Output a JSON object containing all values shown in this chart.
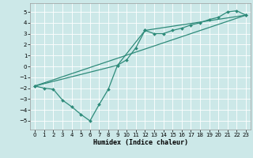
{
  "xlabel": "Humidex (Indice chaleur)",
  "ylabel": "",
  "xlim": [
    -0.5,
    23.5
  ],
  "ylim": [
    -5.8,
    5.8
  ],
  "yticks": [
    -5,
    -4,
    -3,
    -2,
    -1,
    0,
    1,
    2,
    3,
    4,
    5
  ],
  "xticks": [
    0,
    1,
    2,
    3,
    4,
    5,
    6,
    7,
    8,
    9,
    10,
    11,
    12,
    13,
    14,
    15,
    16,
    17,
    18,
    19,
    20,
    21,
    22,
    23
  ],
  "color": "#2e8b7a",
  "bg_color": "#cce8e8",
  "line1_x": [
    0,
    1,
    2,
    3,
    4,
    5,
    6,
    7,
    8,
    9,
    10,
    11,
    12,
    13,
    14,
    15,
    16,
    17,
    18,
    19,
    20,
    21,
    22,
    23
  ],
  "line1_y": [
    -1.8,
    -2.0,
    -2.1,
    -3.1,
    -3.7,
    -4.4,
    -5.0,
    -3.5,
    -2.1,
    0.1,
    0.6,
    1.7,
    3.3,
    3.0,
    3.0,
    3.3,
    3.5,
    3.8,
    4.0,
    4.3,
    4.5,
    5.0,
    5.1,
    4.7
  ],
  "line2_x": [
    0,
    9,
    12,
    23
  ],
  "line2_y": [
    -1.8,
    0.1,
    3.3,
    4.7
  ],
  "line3_x": [
    0,
    23
  ],
  "line3_y": [
    -1.8,
    4.7
  ]
}
